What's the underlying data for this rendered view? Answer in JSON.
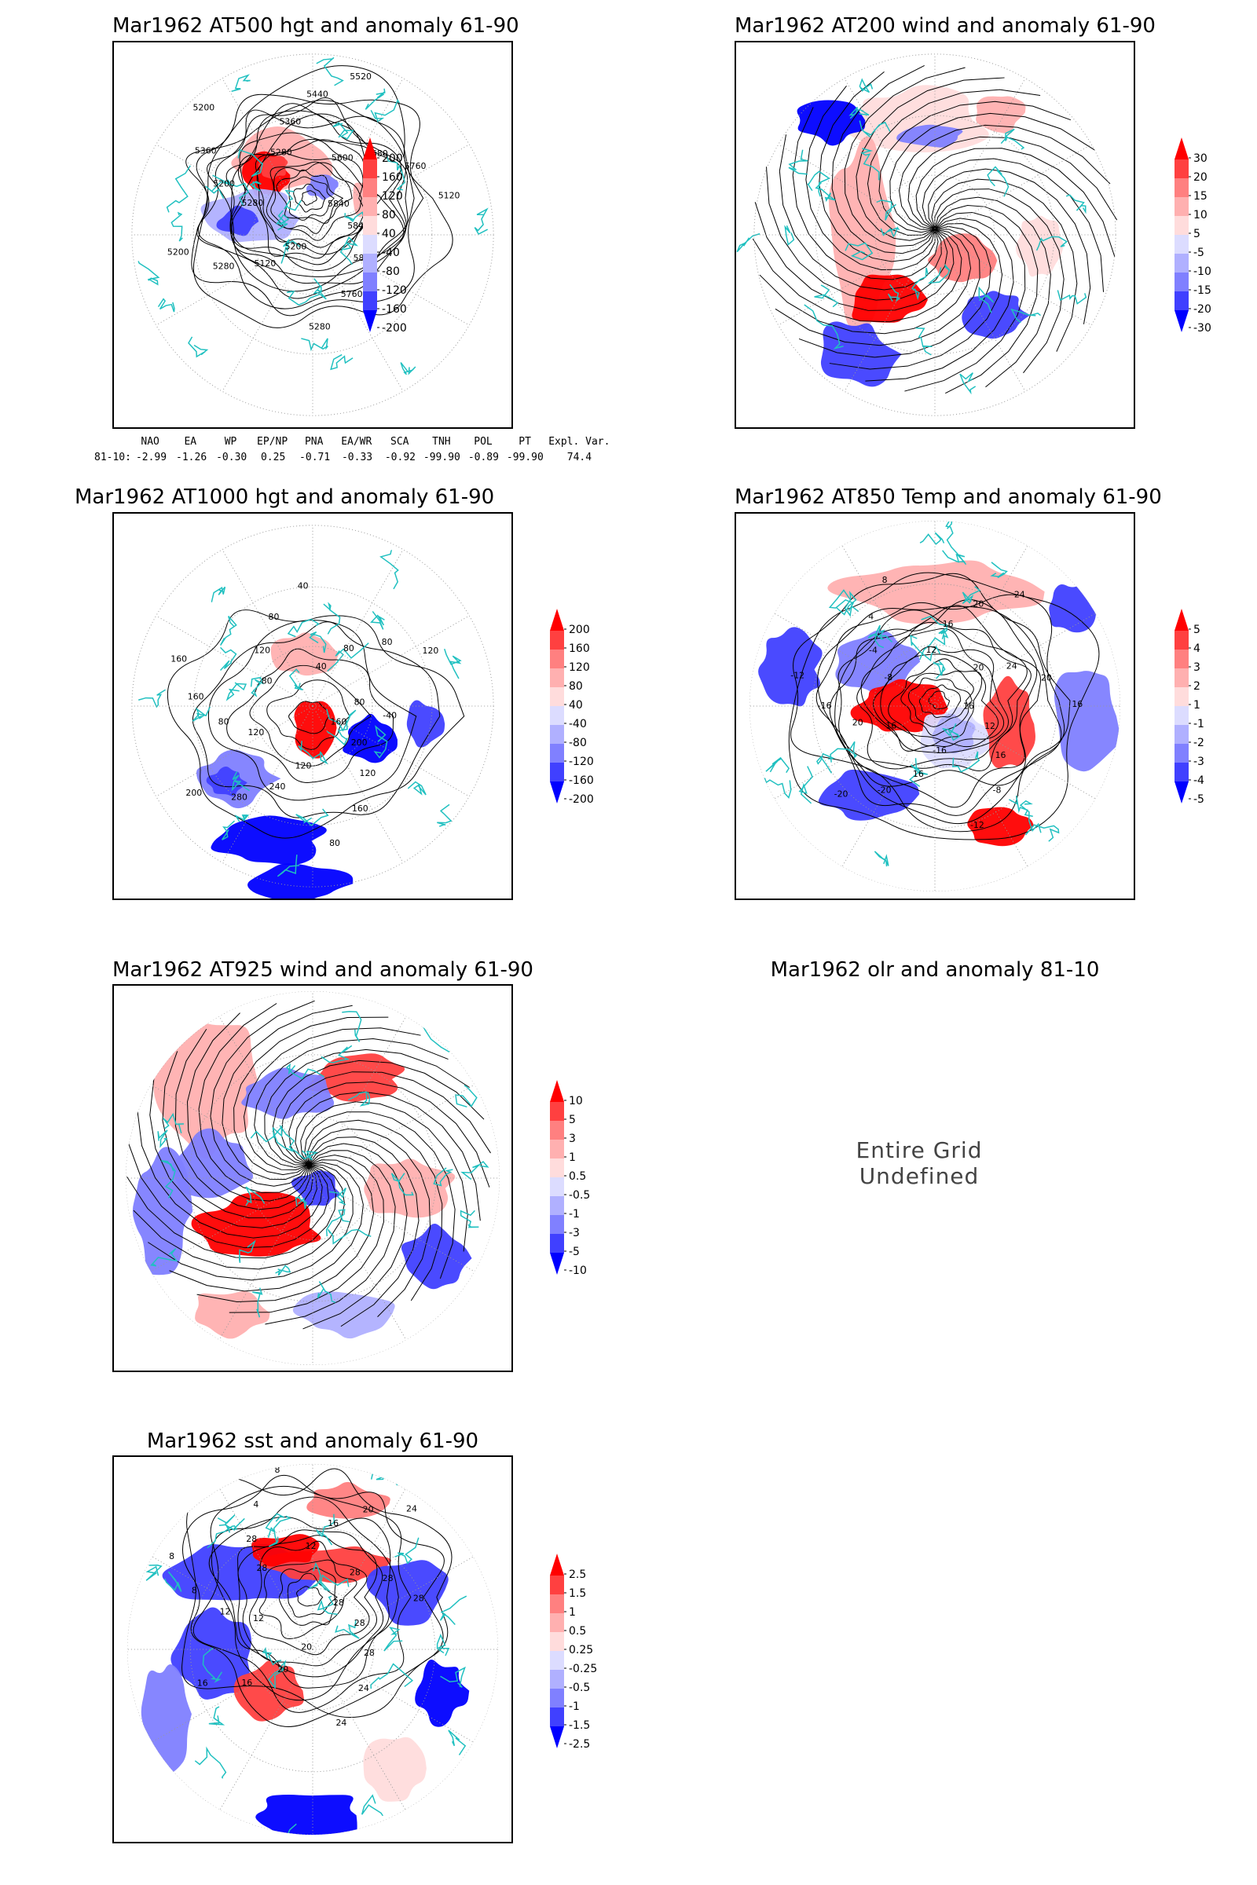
{
  "panels": [
    {
      "id": "p1",
      "title": "Mar1962 AT500 hgt and anomaly 61-90",
      "contour_labels": [
        "5840",
        "5840",
        "5840",
        "5760",
        "5280",
        "5200",
        "5120",
        "5280",
        "5200",
        "5280",
        "5200",
        "5360",
        "5200",
        "5280",
        "5360",
        "5440",
        "5520",
        "5600",
        "5680",
        "5760",
        "5120"
      ],
      "colorbar": [
        "200",
        "160",
        "120",
        "80",
        "40",
        "-40",
        "-80",
        "-120",
        "-160",
        "-200"
      ]
    },
    {
      "id": "p2",
      "title": "Mar1962 AT200 wind and anomaly 61-90",
      "colorbar": [
        "30",
        "20",
        "15",
        "10",
        "5",
        "-5",
        "-10",
        "-15",
        "-20",
        "-30"
      ]
    },
    {
      "id": "p3",
      "title": "Mar1962 AT1000 hgt and anomaly 61-90",
      "contour_labels": [
        "160",
        "200",
        "120",
        "160",
        "80",
        "120",
        "240",
        "280",
        "200",
        "120",
        "80",
        "160",
        "160",
        "80",
        "120",
        "80",
        "40",
        "40",
        "80",
        "80",
        "120",
        "80",
        "-40"
      ],
      "colorbar": [
        "200",
        "160",
        "120",
        "80",
        "40",
        "-40",
        "-80",
        "-120",
        "-160",
        "-200"
      ]
    },
    {
      "id": "p4",
      "title": "Mar1962 AT850 Temp and anomaly 61-90",
      "contour_labels": [
        "16",
        "12",
        "16",
        "-8",
        "-12",
        "-16",
        "16",
        "-20",
        "-20",
        "16",
        "20",
        "-16",
        "-12",
        "-8",
        "-4",
        "4",
        "8",
        "12",
        "16",
        "20",
        "24",
        "20",
        "24",
        "20",
        "16"
      ],
      "colorbar": [
        "5",
        "4",
        "3",
        "2",
        "1",
        "-1",
        "-2",
        "-3",
        "-4",
        "-5"
      ]
    },
    {
      "id": "p5",
      "title": "Mar1962 AT925 wind and anomaly 61-90",
      "colorbar": [
        "10",
        "5",
        "3",
        "1",
        "0.5",
        "-0.5",
        "-1",
        "-3",
        "-5",
        "-10"
      ]
    },
    {
      "id": "p6",
      "title": "Mar1962 olr and anomaly 81-10",
      "message": "Entire Grid Undefined"
    },
    {
      "id": "p7",
      "title": "Mar1962 sst and anomaly 61-90",
      "contour_labels": [
        "28",
        "28",
        "28",
        "24",
        "24",
        "20",
        "20",
        "16",
        "16",
        "12",
        "12",
        "8",
        "8",
        "28",
        "28",
        "4",
        "8",
        "12",
        "16",
        "20",
        "24",
        "28",
        "28",
        "28"
      ],
      "colorbar": [
        "2.5",
        "1.5",
        "1",
        "0.5",
        "0.25",
        "-0.25",
        "-0.5",
        "-1",
        "-1.5",
        "-2.5"
      ]
    }
  ],
  "indices": {
    "headers": [
      "NAO",
      "EA",
      "WP",
      "EP/NP",
      "PNA",
      "EA/WR",
      "SCA",
      "TNH",
      "POL",
      "PT",
      "Expl. Var."
    ],
    "row_label": "81-10:",
    "values": [
      "-2.99",
      "-1.26",
      "-0.30",
      "0.25",
      "-0.71",
      "-0.33",
      "-0.92",
      "-99.90",
      "-0.89",
      "-99.90",
      "74.4"
    ]
  },
  "colors": {
    "positive_scale": [
      "#ff0000",
      "#ff4040",
      "#ff8080",
      "#ffb0b0",
      "#ffdcdc"
    ],
    "negative_scale": [
      "#dcdcff",
      "#b0b0ff",
      "#8080ff",
      "#4040ff",
      "#0000ff"
    ],
    "coastline": "#20c0c0",
    "contour": "#000000"
  }
}
